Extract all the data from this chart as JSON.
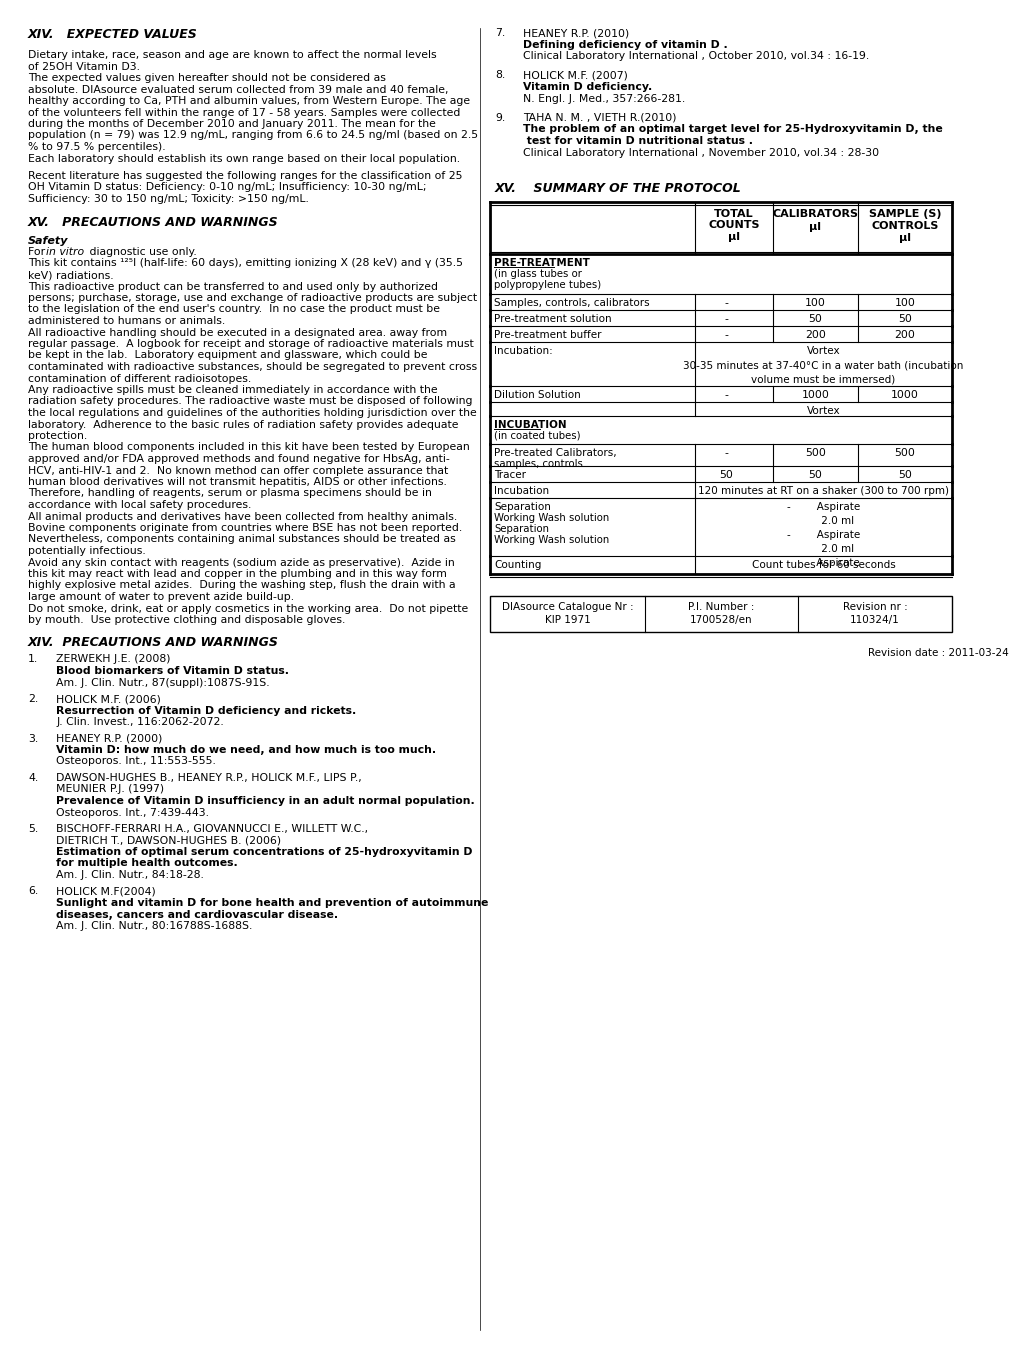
{
  "bg_color": "#ffffff",
  "left_column": {
    "section14_title": "XIV.   EXPECTED VALUES",
    "refs": [
      {
        "num": "1.",
        "author": "ZERWEKH J.E. (2008)",
        "bold": "Blood biomarkers of Vitamin D status.",
        "normal": "Am. J. Clin. Nutr., 87(suppl):1087S-91S."
      },
      {
        "num": "2.",
        "author": "HOLICK M.F. (2006)",
        "bold": "Resurrection of Vitamin D deficiency and rickets.",
        "normal": "J. Clin. Invest., 116:2062-2072."
      },
      {
        "num": "3.",
        "author": "HEANEY R.P. (2000)",
        "bold": "Vitamin D: how much do we need, and how much is too much.",
        "normal": "Osteoporos. Int., 11:553-555."
      },
      {
        "num": "4.",
        "author": "DAWSON-HUGHES B., HEANEY R.P., HOLICK M.F., LIPS P.,",
        "author2": "MEUNIER P.J. (1997)",
        "bold": "Prevalence of Vitamin D insufficiency in an adult normal population.",
        "normal": "Osteoporos. Int., 7:439-443."
      },
      {
        "num": "5.",
        "author": "BISCHOFF-FERRARI H.A., GIOVANNUCCI E., WILLETT W.C.,",
        "author2": "DIETRICH T., DAWSON-HUGHES B. (2006)",
        "bold": "Estimation of optimal serum concentrations of 25-hydroxyvitamin D",
        "bold2": "for multiple health outcomes.",
        "normal": "Am. J. Clin. Nutr., 84:18-28."
      },
      {
        "num": "6.",
        "author": "HOLICK M.F(2004)",
        "bold": "Sunlight and vitamin D for bone health and prevention of autoimmune",
        "bold2": "diseases, cancers and cardiovascular disease.",
        "normal": "Am. J. Clin. Nutr., 80:16788S-1688S."
      }
    ]
  },
  "right_column": {
    "refs": [
      {
        "num": "7.",
        "author": "HEANEY R.P. (2010)",
        "bold": "Defining deficiency of vitamin D .",
        "normal": "Clinical Laboratory International , October 2010, vol.34 : 16-19."
      },
      {
        "num": "8.",
        "author": "HOLICK M.F. (2007)",
        "bold": "Vitamin D deficiency.",
        "normal": "N. Engl. J. Med., 357:266-281."
      },
      {
        "num": "9.",
        "author": "TAHA N. M. , VIETH R.(2010)",
        "bold": "The problem of an optimal target level for 25-Hydroxyvitamin D, the",
        "bold2": " test for vitamin D nutritional status .",
        "normal": "Clinical Laboratory International , November 2010, vol.34 : 28-30"
      }
    ],
    "revision_date": "Revision date : 2011-03-24"
  }
}
